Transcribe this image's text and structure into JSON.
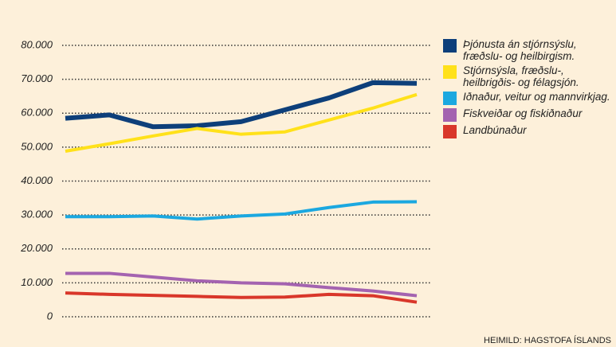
{
  "chart_data": {
    "type": "line",
    "categories": [
      null,
      null,
      null,
      null,
      null,
      null,
      null,
      null,
      null
    ],
    "series": [
      {
        "name": "Þjónusta án stjórnsýslu, fræðslu- og heilbirgism.",
        "color": "#0d3f7a",
        "values": [
          58500,
          59500,
          56000,
          56300,
          57500,
          61000,
          64500,
          69000,
          68800
        ]
      },
      {
        "name": "Stjórnsýsla, fræðslu-, heilbrigðis- og félagsjón.",
        "color": "#ffe11a",
        "values": [
          48800,
          51000,
          53300,
          55500,
          53800,
          54500,
          58000,
          61500,
          65500
        ]
      },
      {
        "name": "Iðnaður, veitur og mannvirkjag.",
        "color": "#1ba8e0",
        "values": [
          29500,
          29500,
          29700,
          28800,
          29700,
          30300,
          32200,
          33800,
          33900
        ]
      },
      {
        "name": "Fiskveiðar og fiskiðnaður",
        "color": "#a463b0",
        "values": [
          12800,
          12800,
          11700,
          10600,
          10000,
          9700,
          8600,
          7600,
          6200
        ]
      },
      {
        "name": "Landbúnaður",
        "color": "#d9372a",
        "values": [
          7000,
          6600,
          6300,
          6000,
          5700,
          5800,
          6600,
          6200,
          4300
        ]
      }
    ],
    "ylim": [
      0,
      80000
    ],
    "yticks": [
      0,
      {
        "value": 10000,
        "label": "10.000"
      },
      {
        "value": 20000,
        "label": "20.000"
      },
      {
        "value": 30000,
        "label": "30.000"
      },
      {
        "value": 40000,
        "label": "40.000"
      },
      {
        "value": 50000,
        "label": "50.000"
      },
      {
        "value": 60000,
        "label": "60.000"
      },
      {
        "value": 70000,
        "label": "70.000"
      },
      {
        "value": 80000,
        "label": "80.000"
      }
    ],
    "grid": true,
    "source": "HEIMILD: HAGSTOFA ÍSLANDS"
  }
}
